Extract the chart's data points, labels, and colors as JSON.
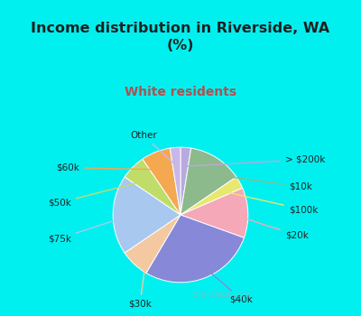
{
  "title": "Income distribution in Riverside, WA\n(%)",
  "subtitle": "White residents",
  "slice_labels": [
    "> $200k",
    "$10k",
    "$100k",
    "$20k",
    "$40k",
    "$30k",
    "$75k",
    "$50k",
    "$60k",
    "Other"
  ],
  "slice_values": [
    2.5,
    13.0,
    3.0,
    12.0,
    28.0,
    7.0,
    19.0,
    6.0,
    7.0,
    2.5
  ],
  "slice_colors": [
    "#b8aade",
    "#8dba8d",
    "#e8e870",
    "#f4a8b8",
    "#8888d8",
    "#f4c8a0",
    "#a8c8f0",
    "#c0dd6a",
    "#f4a850",
    "#c8b8e8"
  ],
  "bg_cyan": "#00f0f0",
  "bg_chart_top": "#e8f8f0",
  "bg_chart_bottom": "#d0f0e8",
  "title_color": "#202020",
  "subtitle_color": "#b05050",
  "watermark": "City-Data.com",
  "label_fontsize": 7.5,
  "title_fontsize": 11.5,
  "subtitle_fontsize": 10
}
